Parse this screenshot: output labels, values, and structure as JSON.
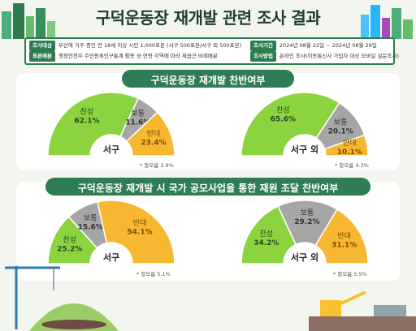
{
  "title": "구덕운동장 재개발 관련 조사 결과",
  "info": {
    "target_label": "조사대상",
    "target_value": "부산에 거주 중인 만 18세 이상 시민 1,000표본 (서구 500표본/서구 외 500표본)",
    "sample_label": "표본배분",
    "sample_value": "행정안전부 주민등록인구통계 활용 성·연령·지역에 따라 제곱근 비례배분",
    "period_label": "조사기간",
    "period_value": "2024년 08월 22일 ~ 2024년 08월 29일",
    "method_label": "조사방법",
    "method_value": "온라인 조사(이동통신사 가입자 대상 모바일 설문조사)"
  },
  "colors": {
    "agree": "#8bd43f",
    "neutral": "#a6a6a6",
    "oppose": "#f7b731",
    "dark_green": "#2e7d4f"
  },
  "sections": [
    {
      "title": "구덕운동장 재개발 찬반여부"
    },
    {
      "title": "구덕운동장 재개발 시 국가 공모사업을 통한 재원 조달 찬반여부"
    }
  ],
  "chart_data": [
    {
      "type": "pie",
      "title": "구덕운동장 재개발 찬반여부",
      "region": "서구",
      "slices": [
        {
          "label": "찬성",
          "value": 62.1,
          "text": "62.1%"
        },
        {
          "label": "보통",
          "value": 11.6,
          "text": "11.6%"
        },
        {
          "label": "반대",
          "value": 23.4,
          "text": "23.4%"
        }
      ],
      "note": "* 잘모름 2.9%"
    },
    {
      "type": "pie",
      "title": "구덕운동장 재개발 찬반여부",
      "region": "서구 외",
      "slices": [
        {
          "label": "찬성",
          "value": 65.6,
          "text": "65.6%"
        },
        {
          "label": "보통",
          "value": 20.1,
          "text": "20.1%"
        },
        {
          "label": "반대",
          "value": 10.1,
          "text": "10.1%"
        }
      ],
      "note": "* 잘모름 4.3%"
    },
    {
      "type": "pie",
      "title": "구덕운동장 재개발 시 국가 공모사업을 통한 재원 조달 찬반여부",
      "region": "서구",
      "slices": [
        {
          "label": "찬성",
          "value": 25.2,
          "text": "25.2%"
        },
        {
          "label": "보통",
          "value": 15.6,
          "text": "15.6%"
        },
        {
          "label": "반대",
          "value": 54.1,
          "text": "54.1%"
        }
      ],
      "note": "* 잘모름 5.1%"
    },
    {
      "type": "pie",
      "title": "구덕운동장 재개발 시 국가 공모사업을 통한 재원 조달 찬반여부",
      "region": "서구 외",
      "slices": [
        {
          "label": "찬성",
          "value": 34.2,
          "text": "34.2%"
        },
        {
          "label": "보통",
          "value": 29.2,
          "text": "29.2%"
        },
        {
          "label": "반대",
          "value": 31.1,
          "text": "31.1%"
        }
      ],
      "note": "* 잘모름 5.5%"
    }
  ]
}
